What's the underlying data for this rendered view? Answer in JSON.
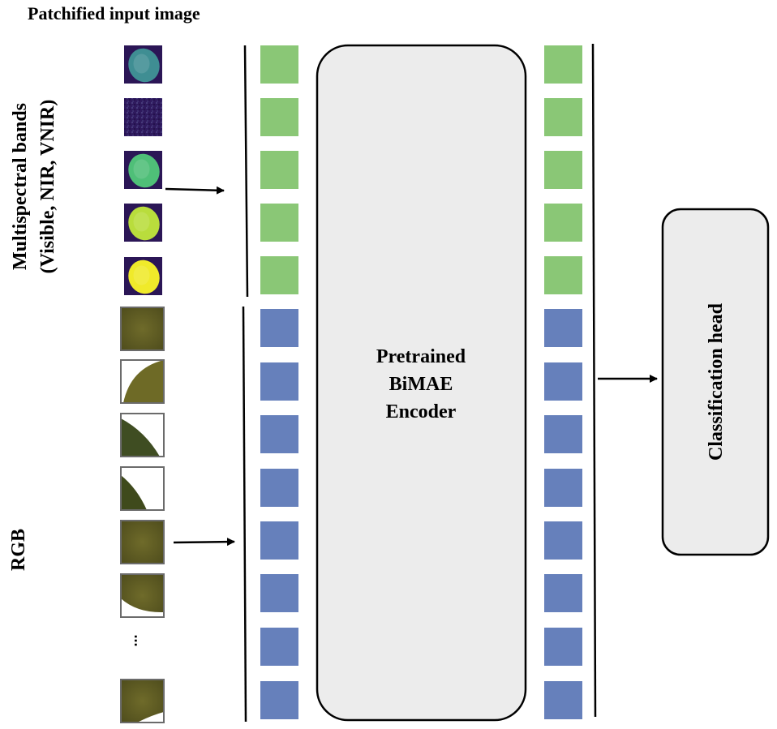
{
  "title": "Patchified input image",
  "multispectral": {
    "label_line1": "Multispectral bands",
    "label_line2": "(Visible, NIR, VNIR)",
    "patches": [
      {
        "name": "ms-patch-1",
        "shape": "blob",
        "bg": "#2b1656",
        "fill": "#3f8e93",
        "intensity": 0.55
      },
      {
        "name": "ms-patch-2",
        "shape": "noise",
        "bg": "#2f1a5e",
        "fill": "#3a2a6e",
        "intensity": 0.15
      },
      {
        "name": "ms-patch-3",
        "shape": "blob",
        "bg": "#2b1656",
        "fill": "#4fbf78",
        "intensity": 0.7
      },
      {
        "name": "ms-patch-4",
        "shape": "blob",
        "bg": "#2b1656",
        "fill": "#b9dd3c",
        "intensity": 0.85
      },
      {
        "name": "ms-patch-5",
        "shape": "blob",
        "bg": "#2b1656",
        "fill": "#f0ea2a",
        "intensity": 1.0
      }
    ]
  },
  "rgb": {
    "label": "RGB",
    "patches": [
      {
        "name": "rgb-patch-1",
        "shape": "full"
      },
      {
        "name": "rgb-patch-2",
        "shape": "arc-top-right"
      },
      {
        "name": "rgb-patch-3",
        "shape": "diag-lower-left"
      },
      {
        "name": "rgb-patch-4",
        "shape": "diag-lower-left-thin"
      },
      {
        "name": "rgb-patch-5",
        "shape": "full"
      },
      {
        "name": "rgb-patch-6",
        "shape": "arc-bottom-white"
      },
      {
        "name": "rgb-patch-7",
        "shape": "full-white-corner"
      }
    ],
    "ellipsis": "..."
  },
  "encoder": {
    "line1": "Pretrained",
    "line2": "BiMAE",
    "line3": "Encoder"
  },
  "classification_head": "Classification head",
  "colors": {
    "ms_token": "#8ac776",
    "rgb_token": "#6680bb",
    "encoder_fill": "#ececec",
    "head_fill": "#ececec",
    "leaf_olive": "#6e6a26",
    "leaf_dark": "#3f4a1c",
    "patch_border": "#6b6b6b"
  },
  "tokens": {
    "ms_count": 5,
    "rgb_count": 8
  }
}
